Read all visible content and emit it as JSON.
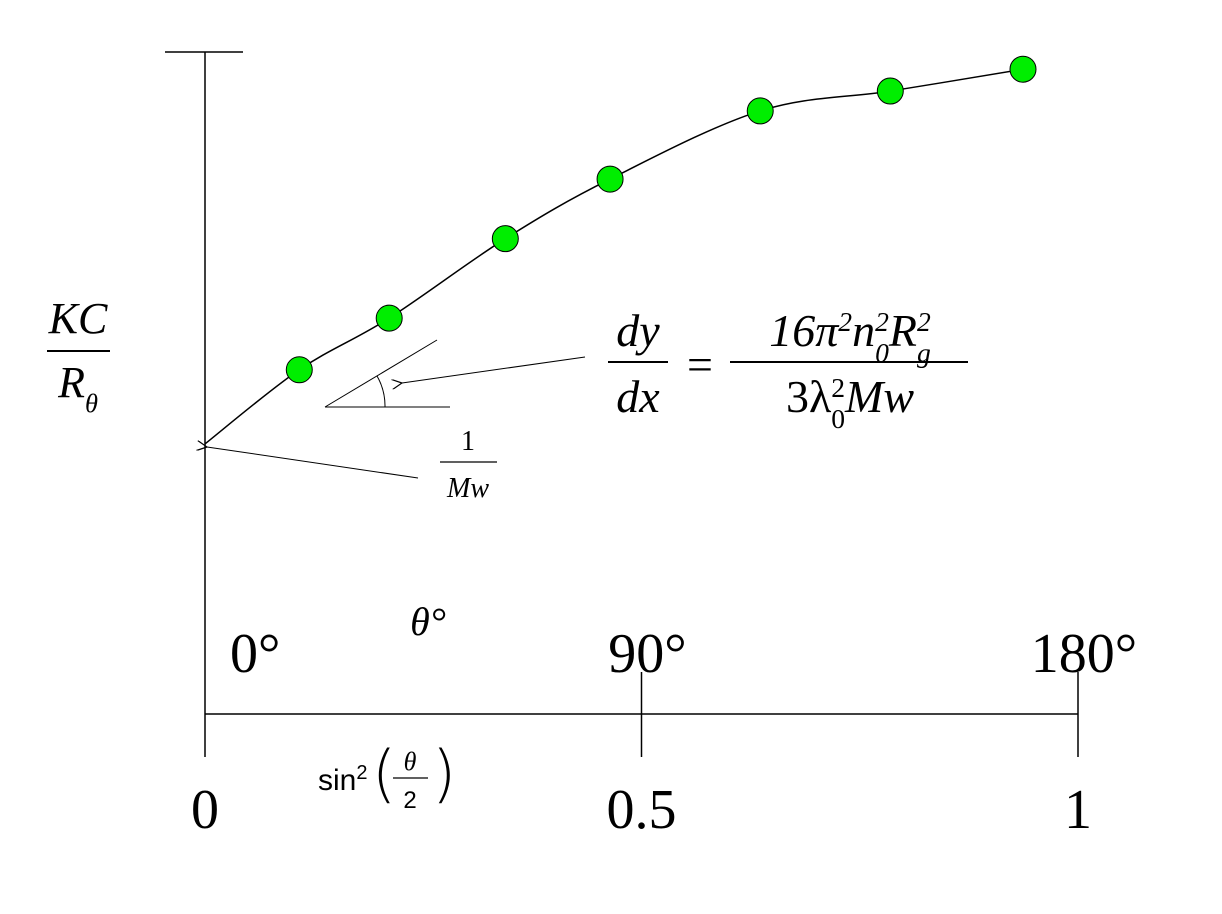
{
  "chart_data": {
    "type": "scatter",
    "y_label": {
      "numerator": "KC",
      "denominator": [
        "R",
        "θ"
      ]
    },
    "x_label": [
      "sin",
      "2",
      "θ",
      "2"
    ],
    "x2_label": "θ°",
    "annotations": {
      "intercept": [
        "1",
        "Mw"
      ],
      "slope": {
        "lhs_numerator": "dy",
        "lhs_denominator": "dx",
        "equals": "=",
        "numerator": [
          "16π",
          "2",
          "n",
          "0",
          "2",
          "R",
          "g",
          "2"
        ],
        "denominator": [
          "3λ",
          "0",
          "2",
          "Mw"
        ]
      }
    },
    "xlim": [
      0,
      1
    ],
    "xticks": [
      0,
      0.5,
      1
    ],
    "x2ticks": [
      {
        "value": 0,
        "label": "0°"
      },
      {
        "value": 0.5,
        "label": "90°"
      },
      {
        "value": 1,
        "label": "180°"
      }
    ],
    "ylim": [
      0,
      1
    ],
    "series": [
      {
        "type": "line",
        "color": "#000000",
        "x": [
          0,
          0.108,
          0.211,
          0.344,
          0.464,
          0.636,
          0.785,
          0.937
        ],
        "values": [
          0.408,
          0.52,
          0.598,
          0.718,
          0.808,
          0.911,
          0.941,
          0.974
        ]
      },
      {
        "type": "scatter",
        "color": "#00ee00",
        "x": [
          0.108,
          0.211,
          0.344,
          0.464,
          0.636,
          0.785,
          0.937
        ],
        "values": [
          0.52,
          0.598,
          0.718,
          0.808,
          0.911,
          0.941,
          0.974
        ]
      }
    ]
  }
}
